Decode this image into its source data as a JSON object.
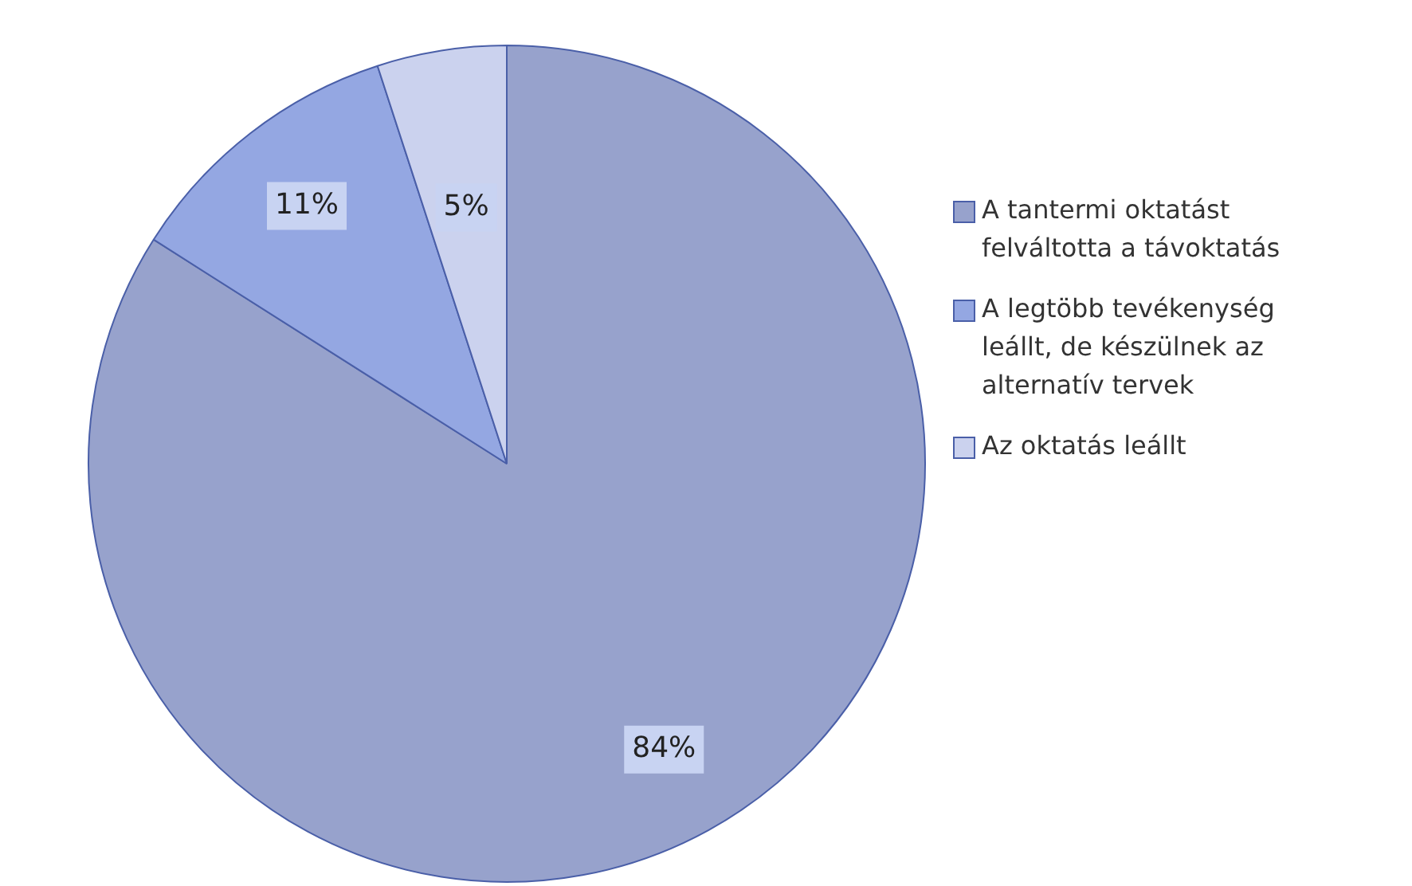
{
  "chart_data": {
    "type": "pie",
    "categories": [
      "A tantermi oktatást felváltotta a távoktatás",
      "A legtöbb tevékenység leállt, de készülnek az alternatív tervek",
      "Az oktatás leállt"
    ],
    "values": [
      84,
      11,
      5
    ],
    "colors": [
      "#97a2cc",
      "#94a7e2",
      "#cbd2ee"
    ],
    "value_labels": [
      "84%",
      "11%",
      "5%"
    ],
    "legend": "right"
  }
}
